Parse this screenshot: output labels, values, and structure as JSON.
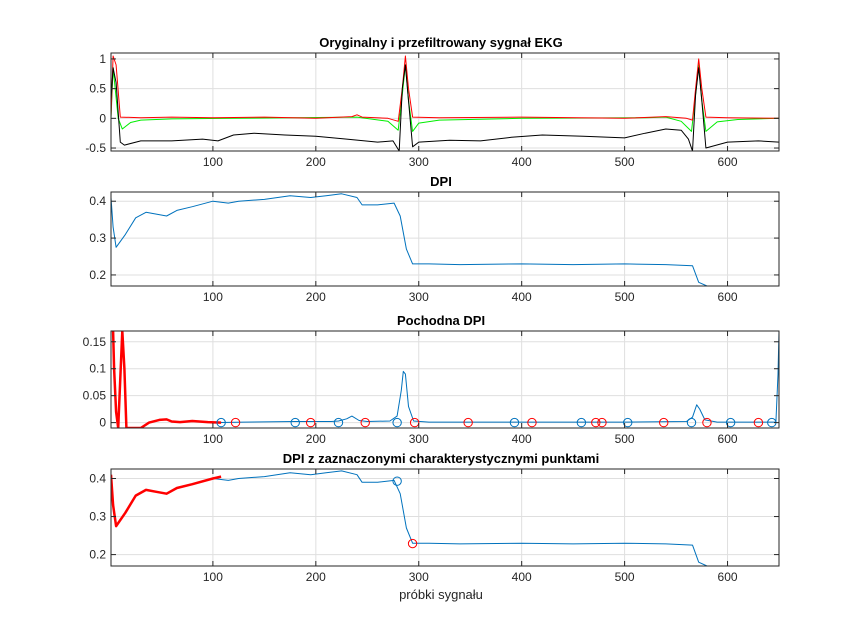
{
  "figure": {
    "xlabel": "próbki sygnału"
  },
  "colors": {
    "red": "#ff0000",
    "green": "#00ee00",
    "black": "#000000",
    "blue": "#0072bd",
    "grid": "#dfdfdf",
    "frame": "#262626"
  },
  "chart_data": [
    {
      "type": "line",
      "title": "Oryginalny i przefiltrowany sygnał EKG",
      "xlabel": "",
      "ylabel": "",
      "xlim": [
        1,
        650
      ],
      "ylim": [
        -0.55,
        1.1
      ],
      "xticks": [
        100,
        200,
        300,
        400,
        500,
        600
      ],
      "yticks": [
        -0.5,
        0,
        0.5,
        1
      ],
      "ytick_labels": [
        "-0.5",
        "0",
        "0.5",
        "1"
      ],
      "grid": true,
      "series": [
        {
          "color": "#00ee00",
          "width": 1,
          "points": [
            [
              1,
              0
            ],
            [
              3,
              0.85
            ],
            [
              8,
              0
            ],
            [
              12,
              -0.18
            ],
            [
              20,
              -0.07
            ],
            [
              30,
              -0.03
            ],
            [
              60,
              -0.01
            ],
            [
              120,
              0
            ],
            [
              240,
              0.02
            ],
            [
              270,
              -0.05
            ],
            [
              280,
              -0.2
            ],
            [
              284,
              0.4
            ],
            [
              287,
              0.9
            ],
            [
              290,
              0.3
            ],
            [
              294,
              -0.22
            ],
            [
              300,
              -0.08
            ],
            [
              320,
              -0.03
            ],
            [
              400,
              0
            ],
            [
              520,
              0.01
            ],
            [
              540,
              0.02
            ],
            [
              555,
              -0.05
            ],
            [
              565,
              -0.22
            ],
            [
              569,
              0.4
            ],
            [
              572,
              0.9
            ],
            [
              575,
              0.3
            ],
            [
              579,
              -0.22
            ],
            [
              590,
              -0.06
            ],
            [
              610,
              -0.02
            ],
            [
              650,
              0
            ]
          ]
        },
        {
          "color": "#ff0000",
          "width": 1,
          "points": [
            [
              1,
              0.02
            ],
            [
              3,
              1.05
            ],
            [
              6,
              0.9
            ],
            [
              10,
              0.02
            ],
            [
              30,
              0.01
            ],
            [
              60,
              0.02
            ],
            [
              100,
              0.01
            ],
            [
              150,
              0.02
            ],
            [
              200,
              0.0
            ],
            [
              235,
              0.03
            ],
            [
              240,
              0.06
            ],
            [
              245,
              0.02
            ],
            [
              270,
              0.0
            ],
            [
              280,
              -0.05
            ],
            [
              284,
              0.5
            ],
            [
              287,
              1.05
            ],
            [
              290,
              0.5
            ],
            [
              294,
              0.02
            ],
            [
              320,
              0.01
            ],
            [
              400,
              0.02
            ],
            [
              500,
              0.0
            ],
            [
              540,
              0.03
            ],
            [
              560,
              0.0
            ],
            [
              566,
              -0.03
            ],
            [
              569,
              0.5
            ],
            [
              572,
              1.0
            ],
            [
              575,
              0.5
            ],
            [
              579,
              0.02
            ],
            [
              600,
              0.01
            ],
            [
              650,
              0.0
            ]
          ]
        },
        {
          "color": "#000000",
          "width": 1,
          "points": [
            [
              1,
              0.3
            ],
            [
              3,
              0.85
            ],
            [
              6,
              0.6
            ],
            [
              10,
              -0.4
            ],
            [
              14,
              -0.45
            ],
            [
              30,
              -0.38
            ],
            [
              60,
              -0.38
            ],
            [
              90,
              -0.35
            ],
            [
              105,
              -0.38
            ],
            [
              120,
              -0.28
            ],
            [
              140,
              -0.25
            ],
            [
              170,
              -0.28
            ],
            [
              200,
              -0.3
            ],
            [
              230,
              -0.35
            ],
            [
              260,
              -0.4
            ],
            [
              275,
              -0.38
            ],
            [
              281,
              -0.55
            ],
            [
              284,
              0.5
            ],
            [
              287,
              0.9
            ],
            [
              290,
              0.3
            ],
            [
              294,
              -0.48
            ],
            [
              300,
              -0.4
            ],
            [
              330,
              -0.37
            ],
            [
              360,
              -0.38
            ],
            [
              390,
              -0.32
            ],
            [
              420,
              -0.28
            ],
            [
              460,
              -0.3
            ],
            [
              500,
              -0.33
            ],
            [
              520,
              -0.25
            ],
            [
              540,
              -0.18
            ],
            [
              555,
              -0.2
            ],
            [
              562,
              -0.35
            ],
            [
              566,
              -0.55
            ],
            [
              569,
              0.4
            ],
            [
              572,
              0.85
            ],
            [
              575,
              0.3
            ],
            [
              579,
              -0.5
            ],
            [
              600,
              -0.4
            ],
            [
              630,
              -0.38
            ],
            [
              650,
              -0.4
            ]
          ]
        }
      ]
    },
    {
      "type": "line",
      "title": "DPI",
      "xlabel": "",
      "ylabel": "",
      "xlim": [
        1,
        650
      ],
      "ylim": [
        0.17,
        0.425
      ],
      "xticks": [
        100,
        200,
        300,
        400,
        500,
        600
      ],
      "yticks": [
        0.2,
        0.3,
        0.4
      ],
      "ytick_labels": [
        "0.2",
        "0.3",
        "0.4"
      ],
      "grid": true,
      "series": [
        {
          "color": "#0072bd",
          "width": 1,
          "points": [
            [
              1,
              0.41
            ],
            [
              3,
              0.33
            ],
            [
              6,
              0.275
            ],
            [
              15,
              0.31
            ],
            [
              25,
              0.355
            ],
            [
              35,
              0.37
            ],
            [
              45,
              0.365
            ],
            [
              55,
              0.36
            ],
            [
              65,
              0.375
            ],
            [
              80,
              0.385
            ],
            [
              100,
              0.4
            ],
            [
              115,
              0.395
            ],
            [
              125,
              0.4
            ],
            [
              150,
              0.405
            ],
            [
              175,
              0.415
            ],
            [
              195,
              0.41
            ],
            [
              210,
              0.415
            ],
            [
              225,
              0.42
            ],
            [
              240,
              0.41
            ],
            [
              245,
              0.39
            ],
            [
              260,
              0.39
            ],
            [
              276,
              0.395
            ],
            [
              282,
              0.36
            ],
            [
              288,
              0.27
            ],
            [
              294,
              0.23
            ],
            [
              310,
              0.23
            ],
            [
              340,
              0.228
            ],
            [
              400,
              0.23
            ],
            [
              450,
              0.228
            ],
            [
              500,
              0.23
            ],
            [
              540,
              0.228
            ],
            [
              566,
              0.225
            ],
            [
              572,
              0.18
            ],
            [
              580,
              0.17
            ],
            [
              650,
              0.17
            ]
          ]
        }
      ]
    },
    {
      "type": "line",
      "title": "Pochodna DPI",
      "xlabel": "",
      "ylabel": "",
      "xlim": [
        1,
        650
      ],
      "ylim": [
        -0.01,
        0.17
      ],
      "xticks": [
        100,
        200,
        300,
        400,
        500,
        600
      ],
      "yticks": [
        0,
        0.05,
        0.1,
        0.15
      ],
      "ytick_labels": [
        "0",
        "0.05",
        "0.1",
        "0.15"
      ],
      "grid": true,
      "series": [
        {
          "color": "#0072bd",
          "width": 1,
          "points": [
            [
              100,
              0
            ],
            [
              130,
              0.001
            ],
            [
              180,
              0.002
            ],
            [
              215,
              0.002
            ],
            [
              222,
              0.003
            ],
            [
              230,
              0.007
            ],
            [
              235,
              0.012
            ],
            [
              242,
              0.004
            ],
            [
              250,
              0.002
            ],
            [
              272,
              0.003
            ],
            [
              279,
              0.012
            ],
            [
              283,
              0.06
            ],
            [
              285,
              0.095
            ],
            [
              287,
              0.09
            ],
            [
              290,
              0.03
            ],
            [
              295,
              0.003
            ],
            [
              310,
              0.001
            ],
            [
              400,
              0.001
            ],
            [
              500,
              0.001
            ],
            [
              560,
              0.002
            ],
            [
              566,
              0.01
            ],
            [
              570,
              0.033
            ],
            [
              573,
              0.025
            ],
            [
              578,
              0.005
            ],
            [
              590,
              0.001
            ],
            [
              640,
              0.001
            ],
            [
              647,
              0.001
            ],
            [
              649,
              0.09
            ],
            [
              650,
              0.17
            ]
          ]
        },
        {
          "color": "#ff0000",
          "width": 2.5,
          "points": [
            [
              3,
              0.17
            ],
            [
              4,
              0.1
            ],
            [
              6,
              0.02
            ],
            [
              8,
              -0.01
            ],
            [
              12,
              0.17
            ],
            [
              14,
              0.1
            ],
            [
              16,
              -0.01
            ],
            [
              30,
              -0.01
            ],
            [
              38,
              0.0
            ],
            [
              48,
              0.005
            ],
            [
              55,
              0.006
            ],
            [
              60,
              0.002
            ],
            [
              68,
              0.001
            ],
            [
              80,
              0.003
            ],
            [
              95,
              0.001
            ],
            [
              108,
              0.0
            ]
          ]
        }
      ],
      "markers": [
        {
          "color": "#0072bd",
          "x": [
            108,
            180,
            222,
            279,
            393,
            458,
            503,
            565,
            603,
            643
          ]
        },
        {
          "color": "#ff0000",
          "x": [
            122,
            195,
            248,
            296,
            348,
            410,
            472,
            478,
            538,
            580,
            630
          ]
        }
      ]
    },
    {
      "type": "line",
      "title": "DPI z zaznaczonymi charakterystycznymi punktami",
      "xlabel": "próbki sygnału",
      "ylabel": "",
      "xlim": [
        1,
        650
      ],
      "ylim": [
        0.17,
        0.425
      ],
      "xticks": [
        100,
        200,
        300,
        400,
        500,
        600
      ],
      "yticks": [
        0.2,
        0.3,
        0.4
      ],
      "ytick_labels": [
        "0.2",
        "0.3",
        "0.4"
      ],
      "grid": true,
      "series": [
        {
          "color": "#0072bd",
          "width": 1,
          "points": [
            [
              100,
              0.4
            ],
            [
              115,
              0.395
            ],
            [
              125,
              0.4
            ],
            [
              150,
              0.405
            ],
            [
              175,
              0.415
            ],
            [
              195,
              0.41
            ],
            [
              210,
              0.415
            ],
            [
              225,
              0.42
            ],
            [
              240,
              0.41
            ],
            [
              245,
              0.39
            ],
            [
              260,
              0.39
            ],
            [
              276,
              0.395
            ],
            [
              282,
              0.36
            ],
            [
              288,
              0.27
            ],
            [
              294,
              0.23
            ],
            [
              310,
              0.23
            ],
            [
              340,
              0.228
            ],
            [
              400,
              0.23
            ],
            [
              450,
              0.228
            ],
            [
              500,
              0.23
            ],
            [
              540,
              0.228
            ],
            [
              566,
              0.225
            ],
            [
              572,
              0.18
            ],
            [
              580,
              0.17
            ],
            [
              650,
              0.17
            ]
          ]
        },
        {
          "color": "#ff0000",
          "width": 2.5,
          "points": [
            [
              1,
              0.41
            ],
            [
              3,
              0.33
            ],
            [
              6,
              0.275
            ],
            [
              15,
              0.31
            ],
            [
              25,
              0.355
            ],
            [
              35,
              0.37
            ],
            [
              45,
              0.365
            ],
            [
              55,
              0.36
            ],
            [
              65,
              0.375
            ],
            [
              80,
              0.385
            ],
            [
              100,
              0.4
            ],
            [
              108,
              0.405
            ]
          ]
        }
      ],
      "markers": [
        {
          "color": "#0072bd",
          "points": [
            [
              279,
              0.393
            ]
          ]
        },
        {
          "color": "#ff0000",
          "points": [
            [
              294,
              0.229
            ]
          ]
        }
      ]
    }
  ]
}
